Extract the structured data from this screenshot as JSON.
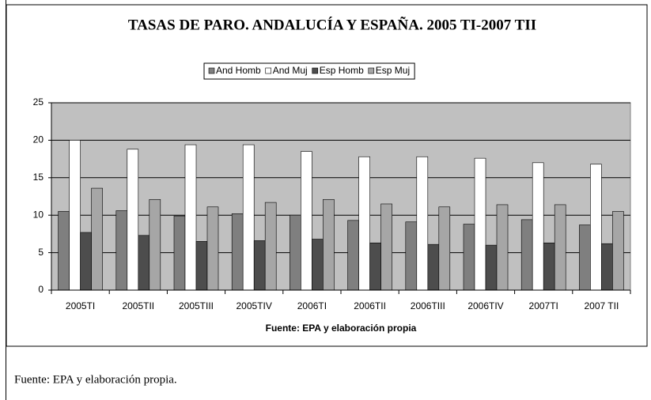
{
  "chart_data": {
    "type": "bar",
    "title": "TASAS DE PARO. ANDALUCÍA Y ESPAÑA. 2005 TI-2007 TII",
    "x_label": "Fuente: EPA y elaboración propia",
    "categories": [
      "2005TI",
      "2005TII",
      "2005TIII",
      "2005TIV",
      "2006TI",
      "2006TII",
      "2006TIII",
      "2006TIV",
      "2007TI",
      "2007 TII"
    ],
    "series": [
      {
        "name": "And Homb",
        "color": "#7f7f7f",
        "values": [
          10.5,
          10.6,
          9.9,
          10.2,
          10.0,
          9.3,
          9.1,
          8.8,
          9.4,
          8.7
        ]
      },
      {
        "name": "And Muj",
        "color": "#ffffff",
        "values": [
          20.0,
          18.8,
          19.4,
          19.4,
          18.5,
          17.8,
          17.8,
          17.6,
          17.0,
          16.8
        ]
      },
      {
        "name": "Esp Homb",
        "color": "#4d4d4d",
        "values": [
          7.7,
          7.3,
          6.5,
          6.6,
          6.8,
          6.3,
          6.1,
          6.0,
          6.3,
          6.2
        ]
      },
      {
        "name": "Esp Muj",
        "color": "#a6a6a6",
        "values": [
          13.6,
          12.1,
          11.1,
          11.7,
          12.1,
          11.5,
          11.1,
          11.4,
          11.4,
          10.5
        ]
      }
    ],
    "ylim": [
      0,
      25
    ],
    "yticks": [
      0,
      5,
      10,
      15,
      20,
      25
    ],
    "grid": true,
    "legend": "top",
    "plot_background": "#c0c0c0"
  },
  "caption": "Fuente: EPA y elaboración propia."
}
